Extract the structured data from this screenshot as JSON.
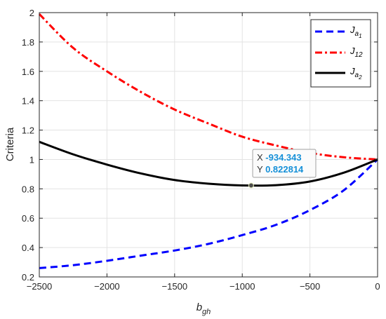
{
  "chart_data": {
    "type": "line",
    "xlabel": "b",
    "xlabel_sub": "gh",
    "ylabel": "Criteria",
    "xlim": [
      -2500,
      0
    ],
    "ylim": [
      0.2,
      2
    ],
    "grid": true,
    "legend_placement": "top-right",
    "x_ticks": [
      -2500,
      -2000,
      -1500,
      -1000,
      -500,
      0
    ],
    "x_tick_labels": [
      "−2500",
      "−2000",
      "−1500",
      "−1000",
      "−500",
      "0"
    ],
    "y_ticks": [
      0.2,
      0.4,
      0.6,
      0.8,
      1.0,
      1.2,
      1.4,
      1.6,
      1.8,
      2.0
    ],
    "y_tick_labels": [
      "0.2",
      "0.4",
      "0.6",
      "0.8",
      "1",
      "1.2",
      "1.4",
      "1.6",
      "1.8",
      "2"
    ],
    "x": [
      -2500,
      -2250,
      -2000,
      -1750,
      -1500,
      -1250,
      -1000,
      -750,
      -500,
      -250,
      0
    ],
    "series": [
      {
        "name": "J_{a_1}",
        "legend_main": "J",
        "legend_sub": "a",
        "legend_subsub": "1",
        "color": "#0000ff",
        "style": "dashed",
        "values": [
          0.26,
          0.28,
          0.31,
          0.345,
          0.38,
          0.425,
          0.485,
          0.555,
          0.655,
          0.79,
          1.0
        ]
      },
      {
        "name": "J_{12}",
        "legend_main": "J",
        "legend_sub": "12",
        "legend_subsub": "",
        "color": "#ff0000",
        "style": "dashdot",
        "values": [
          1.99,
          1.76,
          1.6,
          1.46,
          1.34,
          1.245,
          1.155,
          1.095,
          1.045,
          1.015,
          1.0
        ]
      },
      {
        "name": "J_{a_2}",
        "legend_main": "J",
        "legend_sub": "a",
        "legend_subsub": "2",
        "color": "#000000",
        "style": "solid",
        "values": [
          1.12,
          1.035,
          0.965,
          0.905,
          0.86,
          0.835,
          0.823,
          0.825,
          0.85,
          0.91,
          1.0
        ]
      }
    ],
    "datatip": {
      "x_label": "X",
      "x_value": "-934.343",
      "y_label": "Y",
      "y_value": "0.822814",
      "x": -934.343,
      "y": 0.822814
    }
  }
}
